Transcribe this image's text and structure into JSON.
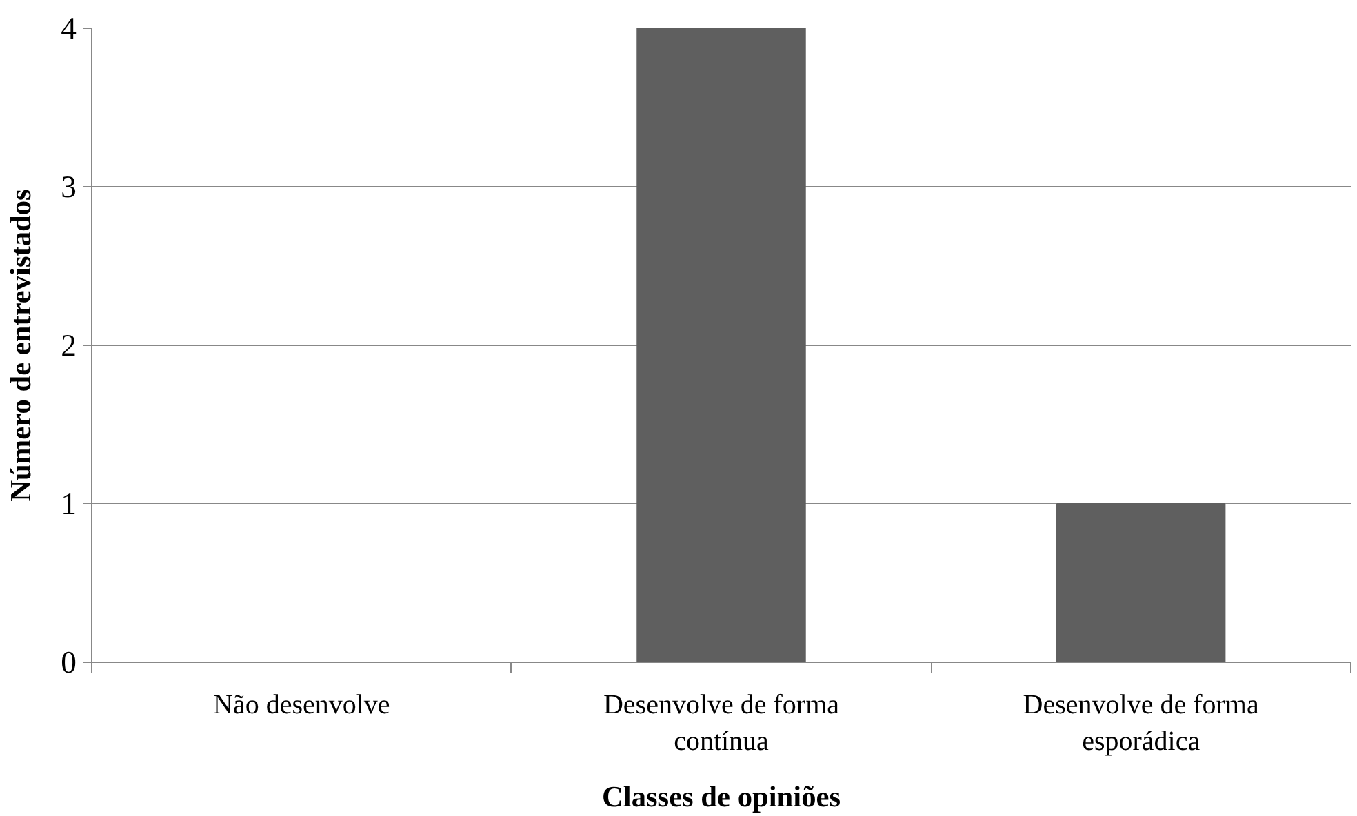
{
  "chart_data": {
    "type": "bar",
    "xlabel": "Classes de opiniões",
    "ylabel": "Número de entrevistados",
    "categories": [
      "Não desenvolve",
      "Desenvolve de forma contínua",
      "Desenvolve de forma esporádica"
    ],
    "values": [
      0,
      4,
      1
    ],
    "color": "#5f5f5f",
    "ylim": [
      0,
      4
    ],
    "yticks": [
      0,
      1,
      2,
      3,
      4
    ],
    "grid": "y"
  }
}
